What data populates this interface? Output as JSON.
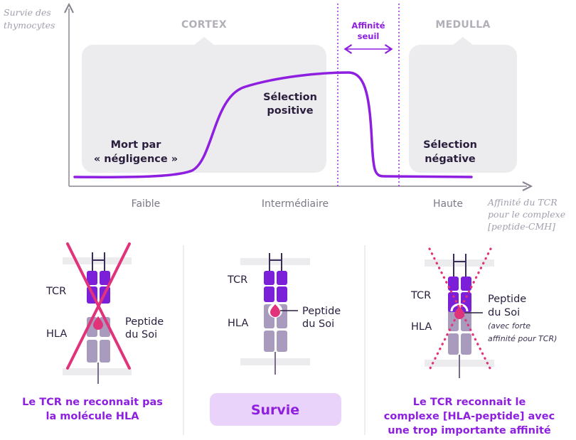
{
  "colors": {
    "purple": "#8e1ee0",
    "dark_purple": "#5a18b0",
    "mhc_gray": "#a99bbd",
    "pink": "#e0337a",
    "box_gray": "#ecebee",
    "axis": "#8a8591"
  },
  "graph": {
    "y_axis_title_line1": "Survie des",
    "y_axis_title_line2": "thymocytes",
    "x_axis_title_line1": "Affinité du TCR",
    "x_axis_title_line2": "pour le complexe",
    "x_axis_title_line3": "[peptide-CMH]",
    "ticks": [
      "Faible",
      "Intermédiaire",
      "Haute"
    ],
    "cortex_label": "CORTEX",
    "medulla_label": "MEDULLA",
    "threshold_line1": "Affinité",
    "threshold_line2": "seuil",
    "region_neglect_line1": "Mort par",
    "region_neglect_line2": "« négligence »",
    "region_positive_line1": "Sélection",
    "region_positive_line2": "positive",
    "region_negative_line1": "Sélection",
    "region_negative_line2": "négative"
  },
  "panels": [
    {
      "tcr_label": "TCR",
      "hla_label": "HLA",
      "peptide_line1": "Peptide",
      "peptide_line2": "du Soi",
      "caption_line1": "Le TCR ne reconnait pas",
      "caption_line2": "la molécule HLA",
      "crossed": "solid-red-x"
    },
    {
      "tcr_label": "TCR",
      "hla_label": "HLA",
      "peptide_line1": "Peptide",
      "peptide_line2": "du Soi",
      "result_label": "Survie"
    },
    {
      "tcr_label": "TCR",
      "hla_label": "HLA",
      "peptide_line1": "Peptide",
      "peptide_line2": "du Soi",
      "note_line1": "(avec forte",
      "note_line2": "affinité pour TCR)",
      "caption_line1": "Le TCR reconnait le",
      "caption_line2": "complexe [HLA-peptide] avec",
      "caption_line3": "une trop importante affinité",
      "crossed": "dotted-pink-x"
    }
  ]
}
